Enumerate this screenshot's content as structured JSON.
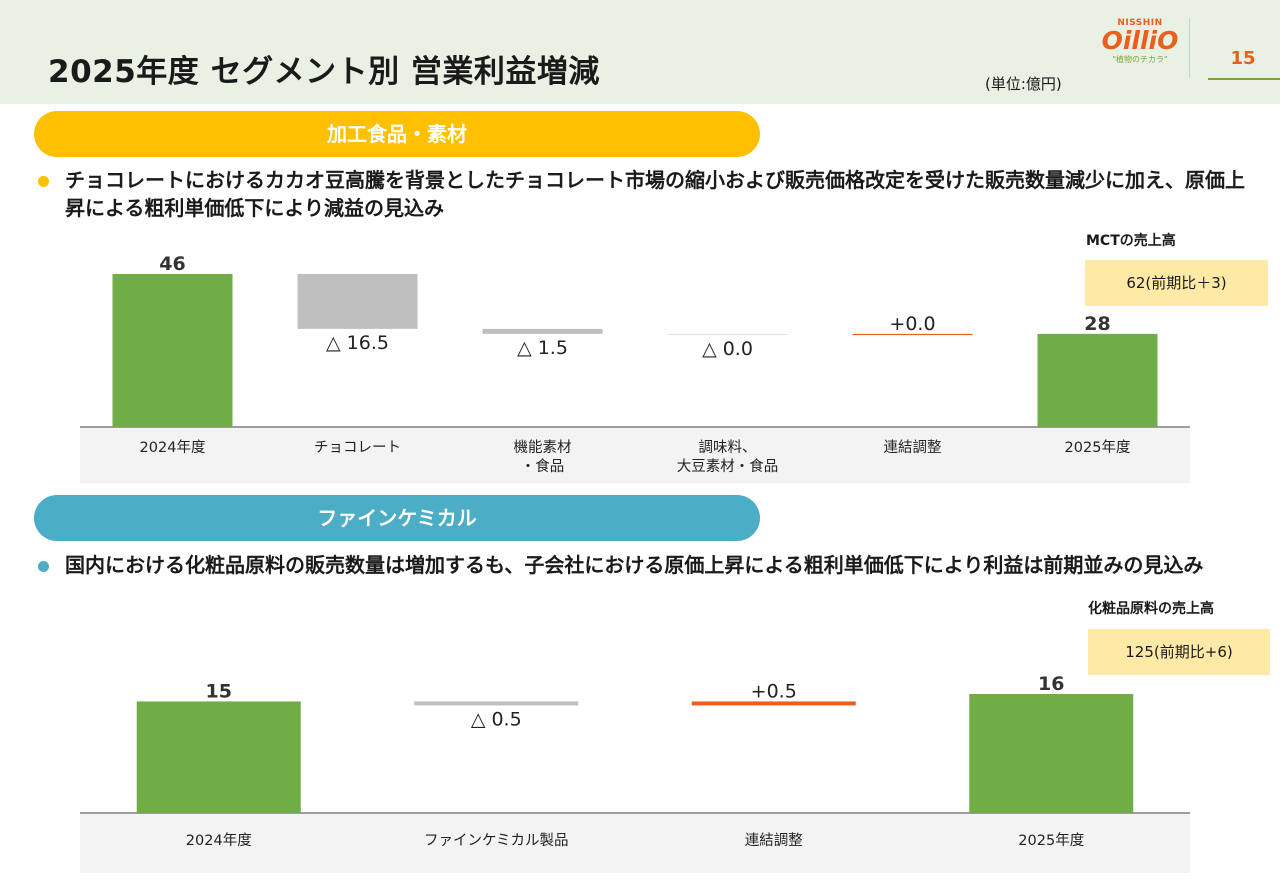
{
  "header": {
    "title": "2025年度 セグメント別 営業利益増減",
    "unit": "(単位:億円)",
    "logo_small": "NISSHIN",
    "logo_main": "OilliO",
    "logo_tag": "\"植物のチカラ\"",
    "page_number": "15"
  },
  "section1": {
    "band_label": "加工食品・素材",
    "bullet": "チョコレートにおけるカカオ豆高騰を背景としたチョコレート市場の縮小および販売価格改定を受けた販売数量減少に加え、原価上昇による粗利単価低下により減益の見込み",
    "info_label": "MCTの売上高",
    "info_value": "62(前期比＋3)"
  },
  "section2": {
    "band_label": "ファインケミカル",
    "bullet": "国内における化粧品原料の販売数量は増加するも、子会社における原価上昇による粗利単価低下により利益は前期並みの見込み",
    "info_label": "化粧品原料の売上高",
    "info_value": "125(前期比+6)"
  },
  "colors": {
    "total": "#70ad47",
    "decrease": "#bfbfbf",
    "increase": "#e8601c",
    "band1": "#ffc000",
    "band2": "#4badc6",
    "info_bg": "#ffe9a6",
    "accent": "#e8601c"
  },
  "chart_data": [
    {
      "type": "bar",
      "subtype": "waterfall",
      "categories": [
        "2024年度",
        "チョコレート",
        "機能素材\n・食品",
        "調味料、\n大豆素材・食品",
        "連結調整",
        "2025年度"
      ],
      "steps": [
        {
          "kind": "total",
          "value": 46,
          "label": "46"
        },
        {
          "kind": "delta",
          "value": -16.5,
          "label": "△ 16.5"
        },
        {
          "kind": "delta",
          "value": -1.5,
          "label": "△ 1.5"
        },
        {
          "kind": "delta",
          "value": 0.0,
          "label": "△ 0.0"
        },
        {
          "kind": "delta",
          "value": 0.0,
          "label": "+0.0"
        },
        {
          "kind": "total",
          "value": 28,
          "label": "28"
        }
      ],
      "ylim": [
        0,
        46
      ]
    },
    {
      "type": "bar",
      "subtype": "waterfall",
      "categories": [
        "2024年度",
        "ファインケミカル製品",
        "連結調整",
        "2025年度"
      ],
      "steps": [
        {
          "kind": "total",
          "value": 15,
          "label": "15"
        },
        {
          "kind": "delta",
          "value": -0.5,
          "label": "△ 0.5"
        },
        {
          "kind": "delta",
          "value": 0.5,
          "label": "+0.5"
        },
        {
          "kind": "total",
          "value": 16,
          "label": "16"
        }
      ],
      "ylim": [
        0,
        16
      ]
    }
  ]
}
